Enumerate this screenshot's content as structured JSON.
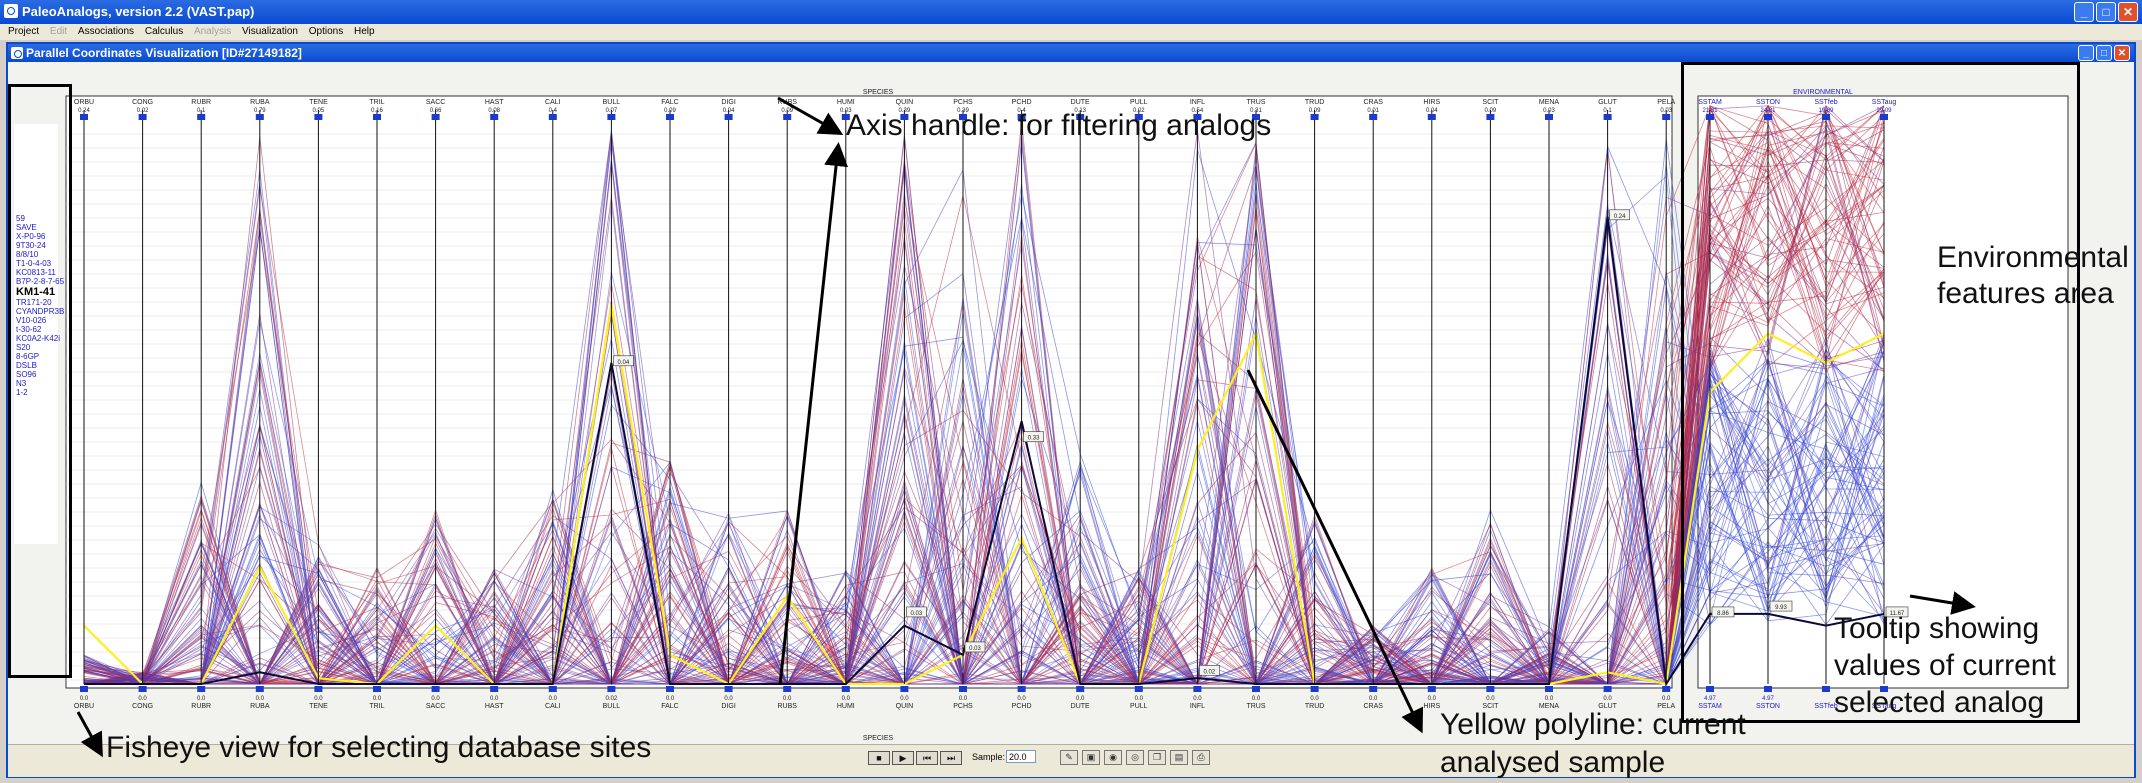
{
  "app": {
    "title": "PaleoAnalogs, version 2.2 (VAST.pap)"
  },
  "menu": [
    {
      "label": "Project",
      "enabled": true
    },
    {
      "label": "Edit",
      "enabled": false
    },
    {
      "label": "Associations",
      "enabled": true
    },
    {
      "label": "Calculus",
      "enabled": true
    },
    {
      "label": "Analysis",
      "enabled": false
    },
    {
      "label": "Visualization",
      "enabled": true
    },
    {
      "label": "Options",
      "enabled": true
    },
    {
      "label": "Help",
      "enabled": true
    }
  ],
  "window": {
    "title": "Parallel Coordinates Visualization [ID#27149182]"
  },
  "species": {
    "group_label": "SPECIES",
    "axes": [
      {
        "name": "ORBU",
        "max": "0.24"
      },
      {
        "name": "CONG",
        "max": "0.02"
      },
      {
        "name": "RUBR",
        "max": "0.1"
      },
      {
        "name": "RUBA",
        "max": "0.79"
      },
      {
        "name": "TENE",
        "max": "0.05"
      },
      {
        "name": "TRIL",
        "max": "0.16"
      },
      {
        "name": "SACC",
        "max": "0.66"
      },
      {
        "name": "HAST",
        "max": "0.08"
      },
      {
        "name": "CALI",
        "max": "0.4"
      },
      {
        "name": "BULL",
        "max": "0.07"
      },
      {
        "name": "FALC",
        "max": "0.09"
      },
      {
        "name": "DIGI",
        "max": "0.04"
      },
      {
        "name": "RUBS",
        "max": "0.09"
      },
      {
        "name": "HUMI",
        "max": "0.03"
      },
      {
        "name": "QUIN",
        "max": "0.39"
      },
      {
        "name": "PCHS",
        "max": "0.39"
      },
      {
        "name": "PCHD",
        "max": "0.4"
      },
      {
        "name": "DUTE",
        "max": "0.13"
      },
      {
        "name": "PULL",
        "max": "0.02"
      },
      {
        "name": "INFL",
        "max": "0.54"
      },
      {
        "name": "TRUS",
        "max": "0.31"
      },
      {
        "name": "TRUD",
        "max": "0.09"
      },
      {
        "name": "CRAS",
        "max": "0.01"
      },
      {
        "name": "HIRS",
        "max": "0.04"
      },
      {
        "name": "SCIT",
        "max": "0.09"
      },
      {
        "name": "MENA",
        "max": "0.03"
      },
      {
        "name": "GLUT",
        "max": "0.1"
      },
      {
        "name": "PELA",
        "max": "0.03"
      }
    ],
    "bottom_values": [
      "0.0",
      "0.0",
      "0.0",
      "0.0",
      "0.0",
      "0.0",
      "0.0",
      "0.0",
      "0.0",
      "0.02",
      "0.0",
      "0.0",
      "0.0",
      "0.0",
      "0.0",
      "0.0",
      "0.0",
      "0.0",
      "0.0",
      "0.0",
      "0.0",
      "0.0",
      "0.0",
      "0.0",
      "0.0",
      "0.0",
      "0.0",
      "0.0"
    ],
    "tooltips": [
      "0.24",
      "0.04",
      "0.03",
      "0.33",
      "0.03",
      "0.02"
    ]
  },
  "environmental": {
    "group_label": "ENVIRONMENTAL",
    "axes": [
      {
        "name": "SSTAM",
        "max": "21.31",
        "min": "4.97"
      },
      {
        "name": "SSTON",
        "max": "24.81",
        "min": "4.97"
      },
      {
        "name": "SSTfeb",
        "max": "19.89",
        "min": ""
      },
      {
        "name": "SSTaug",
        "max": "29.09",
        "min": ""
      }
    ],
    "tooltips": [
      "8.86",
      "9.93",
      "11.67"
    ]
  },
  "fisheye": {
    "items": [
      "59",
      "SAVE",
      "X-P0-96",
      "9T30-24",
      "8/8/10",
      "T1-0-4-03",
      "KC0813-11",
      "B7P-2-8-7-65",
      "KM1-41",
      "TR171-20",
      "CYANDPR3B",
      "V10-026",
      "t-30-62",
      "KC0A2-K42i",
      "S20",
      "8-6GP",
      "DSLB",
      "SO96",
      "N3",
      "1-2"
    ],
    "highlight": "KM1-41"
  },
  "controls": {
    "sample_label": "Sample:",
    "sample_value": "20.0",
    "playback": [
      "stop",
      "play",
      "rewind",
      "forward"
    ],
    "tools": [
      "wrench",
      "pin",
      "camera",
      "camera",
      "copy",
      "save",
      "print"
    ]
  },
  "annotations": [
    "Axis handle: for filtering analogs",
    "Environmental features area",
    "Tooltip showing values of current selected analog",
    "Yellow polyline: current analysed sample",
    "Fisheye view for selecting database sites"
  ],
  "colors": {
    "title_bar": "#0a4ad0",
    "red_lines": "#c0283a",
    "blue_lines": "#2a3fd6",
    "purple_lines": "#7a2c8c",
    "selected": "#ffee22",
    "current": "#0a0a3a"
  }
}
